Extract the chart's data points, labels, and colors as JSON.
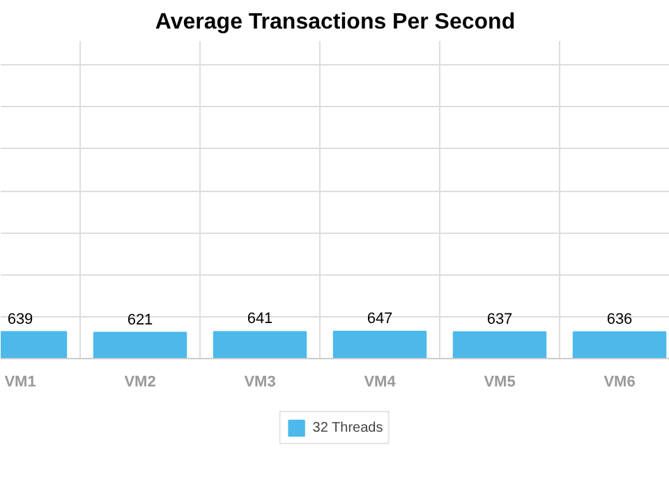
{
  "chart_data": {
    "type": "bar",
    "title": "Average Transactions Per Second",
    "categories": [
      "VM1",
      "VM2",
      "VM3",
      "VM4",
      "VM5",
      "VM6"
    ],
    "series": [
      {
        "name": "32 Threads",
        "color": "#4cb9ea",
        "values": [
          639,
          621,
          641,
          647,
          637,
          636
        ]
      }
    ],
    "tick_labels": "x",
    "grid": true,
    "legend": "bottom",
    "data_labels": true
  }
}
